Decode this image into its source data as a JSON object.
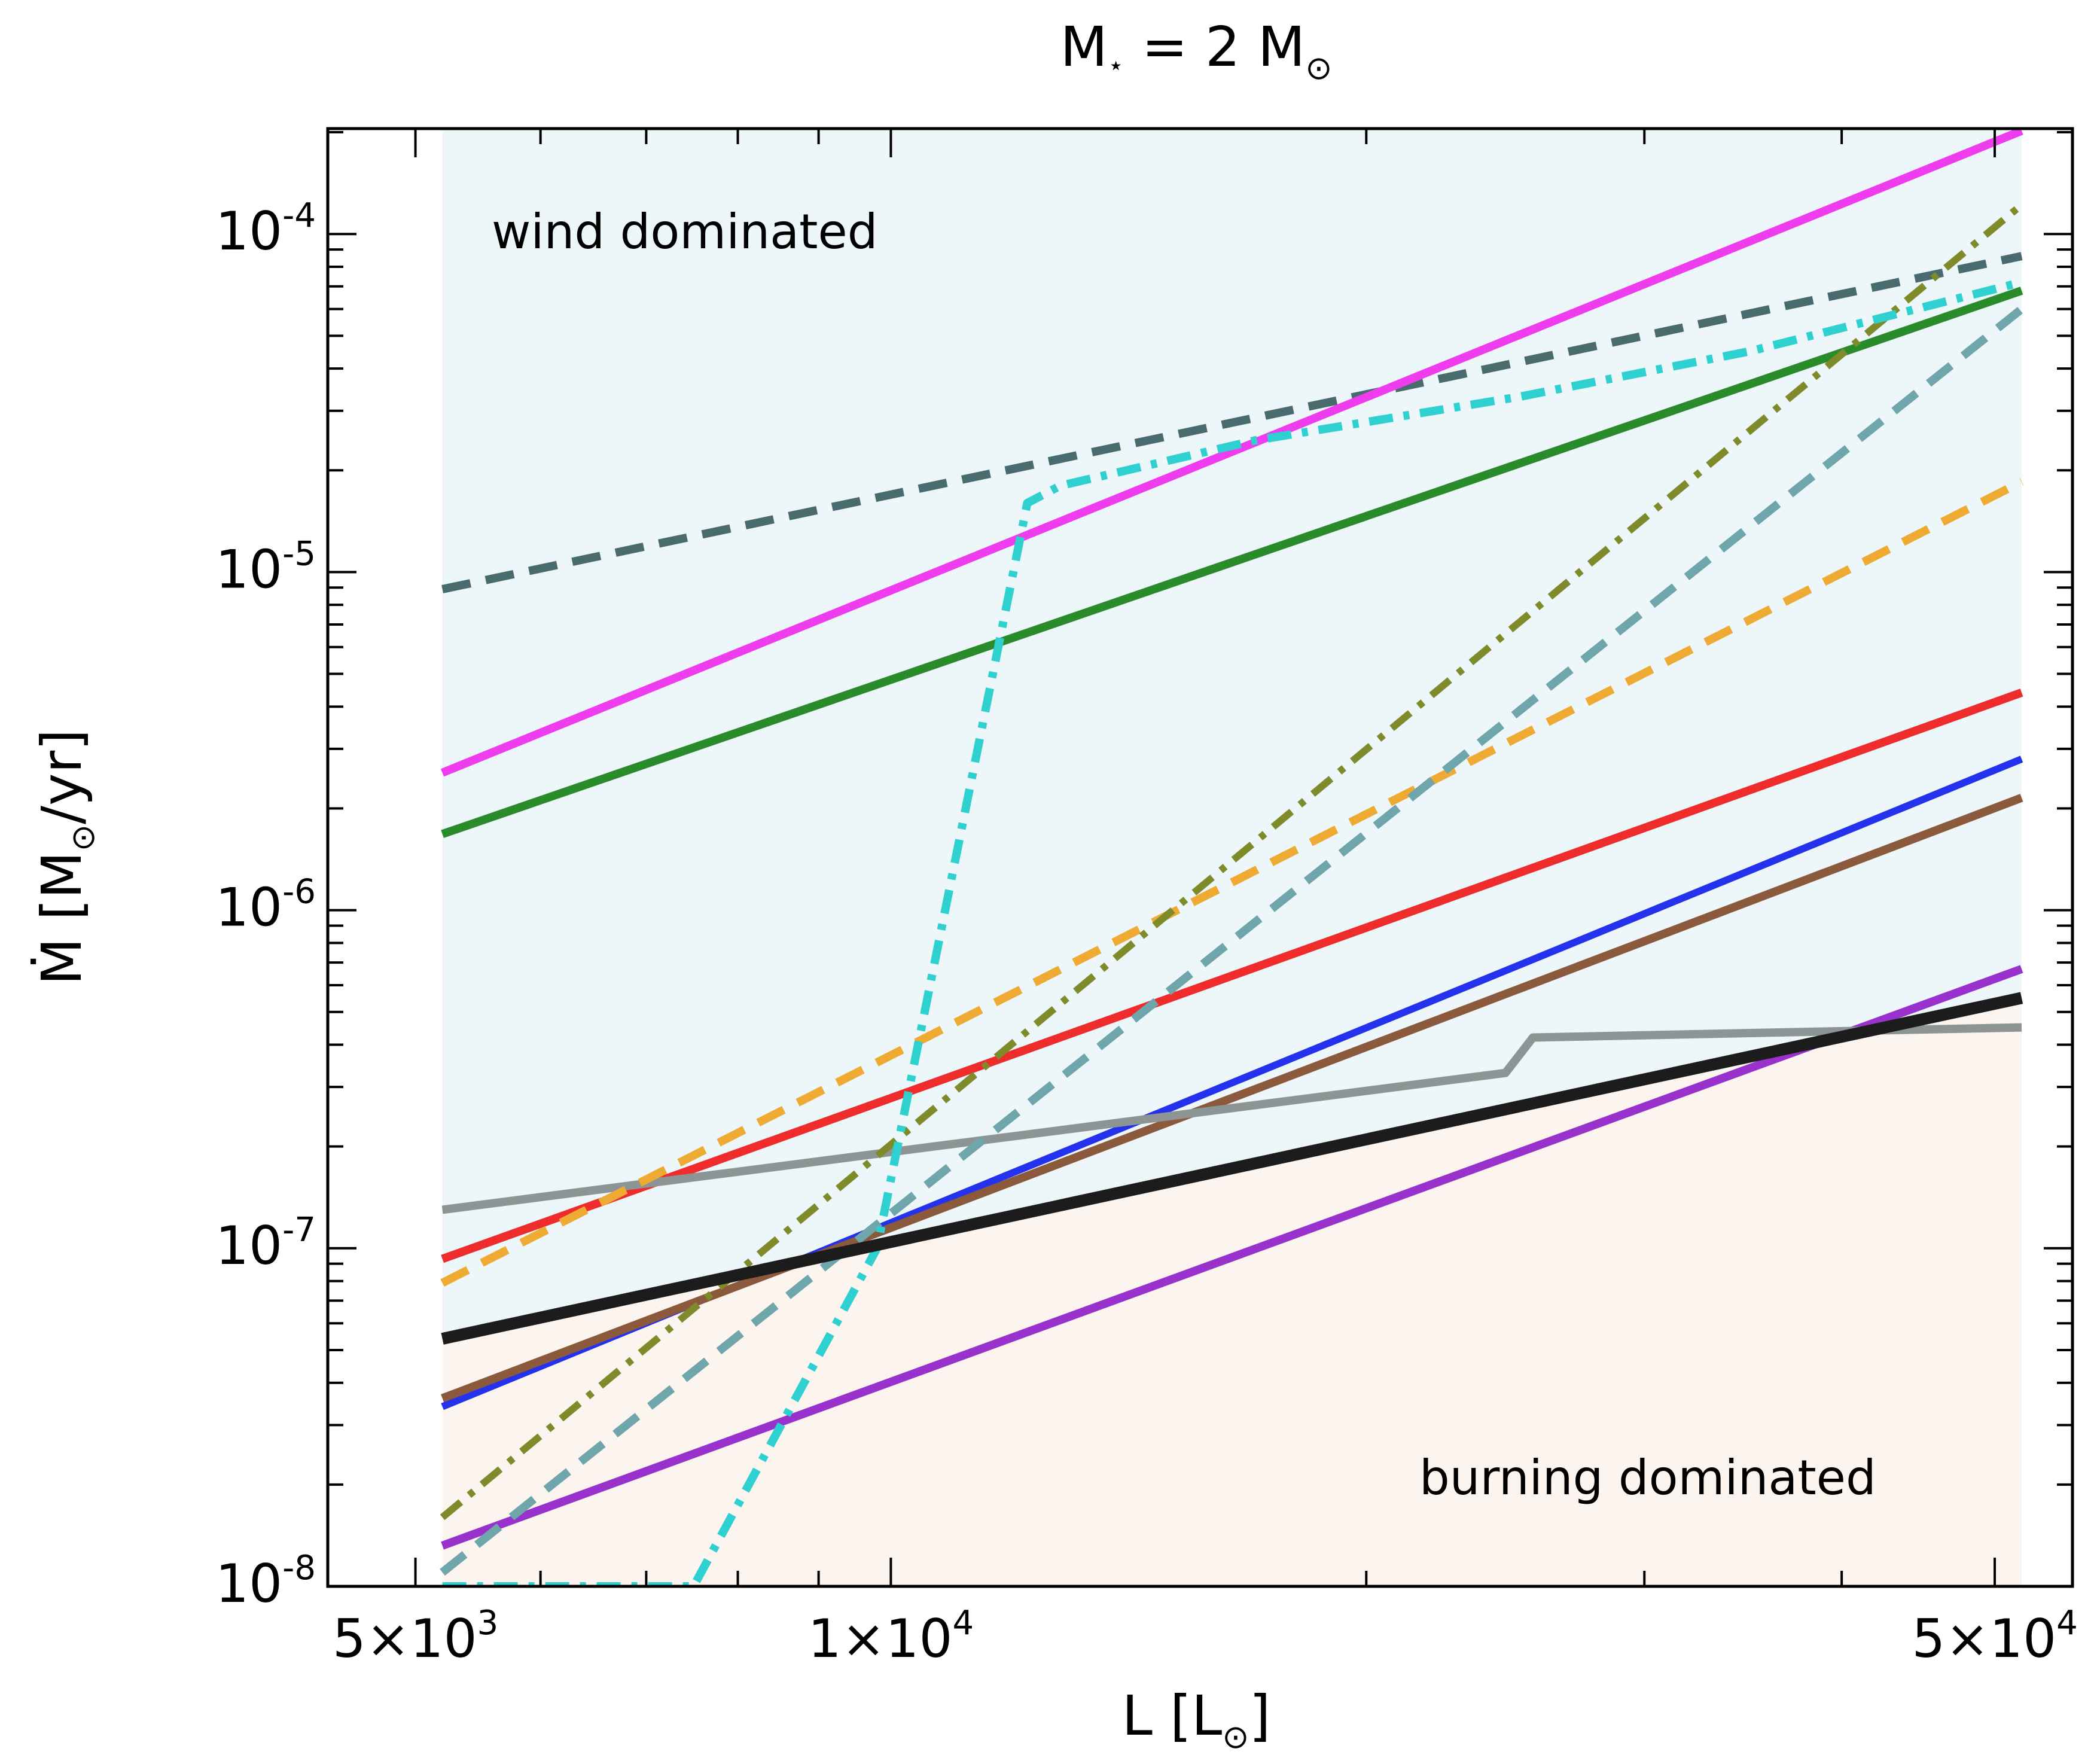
{
  "chart_data": {
    "type": "line",
    "title": {
      "main": "M",
      "main_sub": "⋆",
      "mid": " = 2 M",
      "sun": "⊙"
    },
    "xlabel": {
      "pre": "L [L",
      "sun": "⊙",
      "post": "]"
    },
    "ylabel": {
      "pre": "Ṁ [M",
      "sun": "⊙",
      "post": "/yr]"
    },
    "xscale": "log",
    "yscale": "log",
    "xlim": [
      4400,
      56000
    ],
    "ylim": [
      1e-08,
      0.000205
    ],
    "x_tick_labels": [
      {
        "value": 5000,
        "mantissa": "5×10",
        "exp": "3"
      },
      {
        "value": 10000,
        "mantissa": "1×10",
        "exp": "4"
      },
      {
        "value": 50000,
        "mantissa": "5×10",
        "exp": "4"
      }
    ],
    "y_tick_labels": [
      {
        "value": 1e-08,
        "mantissa": "10",
        "exp": "-8"
      },
      {
        "value": 1e-07,
        "mantissa": "10",
        "exp": "-7"
      },
      {
        "value": 1e-06,
        "mantissa": "10",
        "exp": "-6"
      },
      {
        "value": 1e-05,
        "mantissa": "10",
        "exp": "-5"
      },
      {
        "value": 0.0001,
        "mantissa": "10",
        "exp": "-4"
      }
    ],
    "regions": [
      {
        "name": "wind-region",
        "label": "wind dominated",
        "color": "#edf6f9",
        "label_color": "#1a1a6e"
      },
      {
        "name": "burning-region",
        "label": "burning dominated",
        "color": "#fcf4ef",
        "label_color": "#d2691e"
      }
    ],
    "x_region": [
      5200,
      52000
    ],
    "series": [
      {
        "name": "boundary-black",
        "color": "#1c1c1c",
        "style": "solid",
        "width": 20,
        "x": [
          5200,
          52000
        ],
        "y": [
          5.4e-08,
          5.5e-07
        ]
      },
      {
        "name": "dark-slate-dashed",
        "color": "#4a6b6e",
        "style": "dashed",
        "width": 14,
        "x": [
          5200,
          52000
        ],
        "y": [
          8.9e-06,
          8.6e-05
        ]
      },
      {
        "name": "magenta",
        "color": "#ee3cee",
        "style": "solid",
        "width": 14,
        "x": [
          5200,
          52000
        ],
        "y": [
          2.55e-06,
          0.000202
        ]
      },
      {
        "name": "green",
        "color": "#2a8b2a",
        "style": "solid",
        "width": 14,
        "x": [
          5200,
          52000
        ],
        "y": [
          1.68e-06,
          6.8e-05
        ]
      },
      {
        "name": "red",
        "color": "#ee2c2c",
        "style": "solid",
        "width": 14,
        "x": [
          5200,
          52000
        ],
        "y": [
          9.3e-08,
          4.4e-06
        ]
      },
      {
        "name": "blue",
        "color": "#2432ee",
        "style": "solid",
        "width": 12,
        "x": [
          5200,
          52000
        ],
        "y": [
          3.4e-08,
          2.8e-06
        ]
      },
      {
        "name": "brown",
        "color": "#8b5a3c",
        "style": "solid",
        "width": 14,
        "x": [
          5200,
          52000
        ],
        "y": [
          3.6e-08,
          2.15e-06
        ]
      },
      {
        "name": "purple",
        "color": "#9932cc",
        "style": "solid",
        "width": 14,
        "x": [
          5200,
          52000
        ],
        "y": [
          1.32e-08,
          6.7e-07
        ]
      },
      {
        "name": "gray",
        "color": "#8c9494",
        "style": "solid",
        "width": 14,
        "x": [
          5200,
          24500,
          25500,
          52000
        ],
        "y": [
          1.3e-07,
          3.3e-07,
          4.2e-07,
          4.5e-07
        ]
      },
      {
        "name": "orange-dashed",
        "color": "#eeaa33",
        "style": "dashed",
        "width": 14,
        "x": [
          5200,
          52000
        ],
        "y": [
          7.9e-08,
          1.85e-05
        ]
      },
      {
        "name": "cadet-dashed",
        "color": "#6fa6ab",
        "style": "dashed",
        "width": 14,
        "x": [
          5200,
          52000
        ],
        "y": [
          1.1e-08,
          6e-05
        ]
      },
      {
        "name": "olive-dashdot",
        "color": "#7f8b2a",
        "style": "dashdot",
        "width": 12,
        "x": [
          5200,
          52000
        ],
        "y": [
          1.6e-08,
          0.000122
        ]
      },
      {
        "name": "cyan-dashdot",
        "color": "#2ed0d0",
        "style": "dashdot",
        "width": 14,
        "x": [
          5200,
          7500,
          9800,
          12200,
          12800,
          17000,
          25000,
          35000,
          52000
        ],
        "y": [
          1e-08,
          1e-08,
          1e-07,
          1.6e-05,
          1.8e-05,
          2.45e-05,
          3.3e-05,
          4.5e-05,
          7.2e-05
        ]
      }
    ]
  }
}
